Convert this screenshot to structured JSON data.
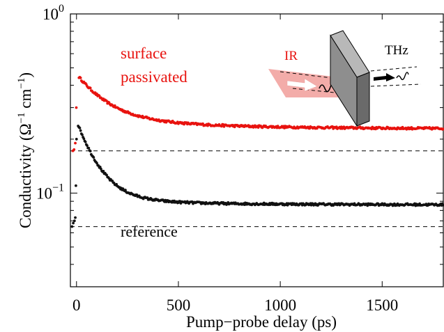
{
  "chart_data": {
    "type": "scatter",
    "title": "",
    "xlabel": "Pump−probe delay (ps)",
    "ylabel": {
      "base": "Conductivity (Ω",
      "exp1": "−1",
      "mid": " cm",
      "exp2": "−1",
      "end": ")"
    },
    "xlim": [
      -30,
      1800
    ],
    "ylim": [
      0.03,
      1.0
    ],
    "yscale": "log",
    "grid": false,
    "x_ticks": [
      {
        "value": 0,
        "label": "0"
      },
      {
        "value": 500,
        "label": "500"
      },
      {
        "value": 1000,
        "label": "1000"
      },
      {
        "value": 1500,
        "label": "1500"
      }
    ],
    "y_ticks": [
      {
        "value": 1.0,
        "base": "10",
        "exp": "0"
      },
      {
        "value": 0.1,
        "base": "10",
        "exp": "−1"
      }
    ],
    "series": [
      {
        "name": "surface passivated",
        "color": "#e8130f",
        "baseline": 0.172,
        "rise": [
          [
            -18,
            0.172
          ],
          [
            -12,
            0.175
          ],
          [
            -6,
            0.19
          ],
          [
            -1,
            0.3
          ]
        ],
        "decay": {
          "x_start": 12,
          "x_end": 1800,
          "step": 4,
          "peak": 0.445,
          "floor": 0.228,
          "tail_amp": 0.03,
          "tail_tau": 600,
          "fast_amp": 0.187,
          "fast_tau": 140
        }
      },
      {
        "name": "reference",
        "color": "#111111",
        "baseline": 0.065,
        "rise": [
          [
            -22,
            0.065
          ],
          [
            -16,
            0.068
          ],
          [
            -10,
            0.07
          ],
          [
            -6,
            0.073
          ],
          [
            -3,
            0.11
          ],
          [
            0,
            0.2
          ]
        ],
        "decay": {
          "x_start": 8,
          "x_end": 1800,
          "step": 4,
          "peak": 0.24,
          "floor": 0.086,
          "tail_amp": 0.006,
          "tail_tau": 500,
          "fast_amp": 0.148,
          "fast_tau": 95
        }
      }
    ],
    "annotations": {
      "surface_line1": "surface",
      "surface_line2": "passivated",
      "reference": "reference",
      "inset_ir": "IR",
      "inset_thz": "THz"
    }
  }
}
